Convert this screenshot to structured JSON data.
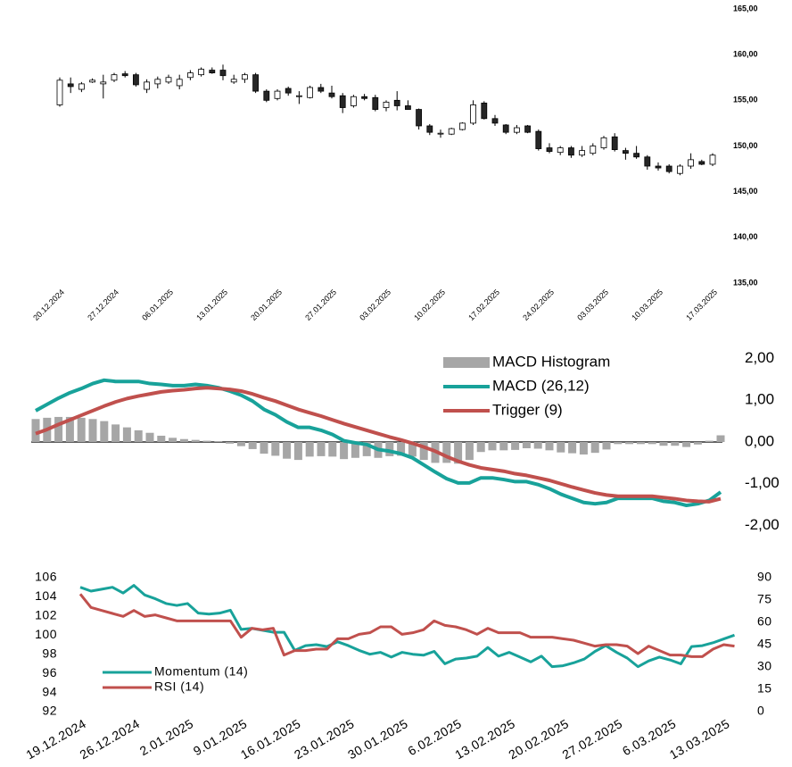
{
  "chart_data": [
    {
      "type": "candlestick",
      "categories": [
        "20.12.2024",
        null,
        null,
        null,
        null,
        "27.12.2024",
        null,
        null,
        null,
        null,
        "06.01.2025",
        null,
        null,
        null,
        null,
        "13.01.2025",
        null,
        null,
        null,
        null,
        "20.01.2025",
        null,
        null,
        null,
        null,
        "27.01.2025",
        null,
        null,
        null,
        null,
        "03.02.2025",
        null,
        null,
        null,
        null,
        "10.02.2025",
        null,
        null,
        null,
        null,
        "17.02.2025",
        null,
        null,
        null,
        null,
        "24.02.2025",
        null,
        null,
        null,
        null,
        "03.03.2025",
        null,
        null,
        null,
        null,
        "10.03.2025",
        null,
        null,
        null,
        null,
        "17.03.2025"
      ],
      "open": [
        154.5,
        156.8,
        156.2,
        157.0,
        156.8,
        157.2,
        157.9,
        157.8,
        156.2,
        156.8,
        157.0,
        156.6,
        157.5,
        157.8,
        158.3,
        158.3,
        157.0,
        157.3,
        157.8,
        156.0,
        155.2,
        156.3,
        155.4,
        155.3,
        156.4,
        155.8,
        155.5,
        154.4,
        155.4,
        155.3,
        154.2,
        155.0,
        154.4,
        154.0,
        152.2,
        151.4,
        151.3,
        151.8,
        152.5,
        154.7,
        153.0,
        152.3,
        151.5,
        152.2,
        151.6,
        149.8,
        149.3,
        149.8,
        149.0,
        149.2,
        149.8,
        151.0,
        149.5,
        149.2,
        148.8,
        147.8,
        147.8,
        147.0,
        147.8,
        148.3,
        148.0
      ],
      "high": [
        157.5,
        157.5,
        157.0,
        157.4,
        157.8,
        158.0,
        158.2,
        158.0,
        157.3,
        157.6,
        157.8,
        157.8,
        158.3,
        158.6,
        158.6,
        158.9,
        157.8,
        158.0,
        158.0,
        156.2,
        156.2,
        156.5,
        156.0,
        156.6,
        156.8,
        156.6,
        155.8,
        155.6,
        155.7,
        155.6,
        155.0,
        156.0,
        155.0,
        154.1,
        152.4,
        151.8,
        152.0,
        152.6,
        155.0,
        154.9,
        153.4,
        152.4,
        152.3,
        152.3,
        151.8,
        150.3,
        150.0,
        150.0,
        150.0,
        150.3,
        151.1,
        151.4,
        149.8,
        150.0,
        149.0,
        148.2,
        148.0,
        148.0,
        149.2,
        148.5,
        149.2
      ],
      "low": [
        154.3,
        155.8,
        155.9,
        156.9,
        155.2,
        157.0,
        157.5,
        156.5,
        155.8,
        156.3,
        156.8,
        156.2,
        157.2,
        157.6,
        157.9,
        157.2,
        156.8,
        156.9,
        155.8,
        154.8,
        155.0,
        155.5,
        154.6,
        155.2,
        155.8,
        155.2,
        153.6,
        154.2,
        155.0,
        153.8,
        153.8,
        153.9,
        154.0,
        151.8,
        151.2,
        150.9,
        151.2,
        151.7,
        152.3,
        152.9,
        152.2,
        151.3,
        151.3,
        151.4,
        149.5,
        149.2,
        149.0,
        148.7,
        148.8,
        149.0,
        149.6,
        149.4,
        148.5,
        148.6,
        147.4,
        147.3,
        147.0,
        146.8,
        147.5,
        147.9,
        147.8
      ],
      "close": [
        157.2,
        156.5,
        156.8,
        157.2,
        157.0,
        157.8,
        157.7,
        156.7,
        157.0,
        157.3,
        157.5,
        157.3,
        158.0,
        158.4,
        158.0,
        157.7,
        157.3,
        157.8,
        156.0,
        155.0,
        156.0,
        155.8,
        155.5,
        156.4,
        156.0,
        155.4,
        154.2,
        155.4,
        155.2,
        154.0,
        154.8,
        154.4,
        154.0,
        152.2,
        151.5,
        151.4,
        151.9,
        152.5,
        154.5,
        153.0,
        152.5,
        151.5,
        152.0,
        151.5,
        149.7,
        149.4,
        149.8,
        149.0,
        149.5,
        150.0,
        150.9,
        149.6,
        149.2,
        148.8,
        147.8,
        147.6,
        147.2,
        147.8,
        148.5,
        148.0,
        149.0
      ],
      "up_color": "#ffffff",
      "down_color": "#262626",
      "edge_color": "#000000",
      "ylim": [
        135,
        165
      ],
      "yticks": [
        {
          "value": 135,
          "label": "135,00"
        },
        {
          "value": 140,
          "label": "140,00"
        },
        {
          "value": 145,
          "label": "145,00"
        },
        {
          "value": 150,
          "label": "150,00"
        },
        {
          "value": 155,
          "label": "155,00"
        },
        {
          "value": 160,
          "label": "160,00"
        },
        {
          "value": 165,
          "label": "165,00"
        }
      ]
    },
    {
      "type": "combo",
      "series": [
        {
          "name": "MACD Histogram",
          "type": "bar",
          "color": "#a6a6a6",
          "values": [
            0.55,
            0.58,
            0.6,
            0.6,
            0.58,
            0.55,
            0.5,
            0.42,
            0.35,
            0.28,
            0.22,
            0.15,
            0.1,
            0.07,
            0.05,
            0.03,
            0.01,
            -0.04,
            -0.1,
            -0.17,
            -0.28,
            -0.33,
            -0.4,
            -0.43,
            -0.35,
            -0.34,
            -0.35,
            -0.41,
            -0.38,
            -0.34,
            -0.38,
            -0.34,
            -0.33,
            -0.35,
            -0.43,
            -0.5,
            -0.5,
            -0.52,
            -0.43,
            -0.24,
            -0.2,
            -0.2,
            -0.19,
            -0.15,
            -0.16,
            -0.2,
            -0.25,
            -0.27,
            -0.3,
            -0.26,
            -0.18,
            -0.05,
            -0.05,
            -0.05,
            -0.05,
            -0.09,
            -0.09,
            -0.12,
            -0.06,
            0.03,
            0.16
          ]
        },
        {
          "name": "MACD (26,12)",
          "type": "line",
          "color": "#18a29a",
          "values": [
            0.75,
            0.9,
            1.05,
            1.18,
            1.28,
            1.4,
            1.48,
            1.45,
            1.45,
            1.45,
            1.4,
            1.38,
            1.35,
            1.35,
            1.38,
            1.35,
            1.3,
            1.22,
            1.12,
            0.98,
            0.78,
            0.65,
            0.48,
            0.35,
            0.35,
            0.28,
            0.18,
            0.03,
            -0.02,
            -0.06,
            -0.18,
            -0.22,
            -0.28,
            -0.38,
            -0.55,
            -0.72,
            -0.88,
            -0.98,
            -0.98,
            -0.86,
            -0.86,
            -0.9,
            -0.95,
            -0.95,
            -1.02,
            -1.12,
            -1.25,
            -1.35,
            -1.45,
            -1.48,
            -1.45,
            -1.35,
            -1.35,
            -1.35,
            -1.35,
            -1.42,
            -1.45,
            -1.52,
            -1.48,
            -1.4,
            -1.2
          ]
        },
        {
          "name": "Trigger (9)",
          "type": "line",
          "color": "#c0504d",
          "values": [
            0.2,
            0.3,
            0.42,
            0.53,
            0.64,
            0.75,
            0.86,
            0.96,
            1.04,
            1.1,
            1.15,
            1.2,
            1.23,
            1.25,
            1.28,
            1.3,
            1.28,
            1.26,
            1.22,
            1.15,
            1.06,
            0.98,
            0.88,
            0.78,
            0.7,
            0.62,
            0.53,
            0.44,
            0.36,
            0.28,
            0.2,
            0.12,
            0.05,
            -0.03,
            -0.12,
            -0.22,
            -0.35,
            -0.46,
            -0.55,
            -0.62,
            -0.66,
            -0.7,
            -0.76,
            -0.8,
            -0.86,
            -0.92,
            -1.0,
            -1.08,
            -1.15,
            -1.22,
            -1.27,
            -1.3,
            -1.3,
            -1.3,
            -1.3,
            -1.33,
            -1.36,
            -1.4,
            -1.42,
            -1.43,
            -1.36
          ]
        }
      ],
      "ylim": [
        -2,
        2
      ],
      "yticks": [
        {
          "value": -2,
          "label": "-2,00"
        },
        {
          "value": -1,
          "label": "-1,00"
        },
        {
          "value": 0,
          "label": "0,00"
        },
        {
          "value": 1,
          "label": "1,00"
        },
        {
          "value": 2,
          "label": "2,00"
        }
      ],
      "legend": "upper right"
    },
    {
      "type": "line",
      "categories": [
        "19.12.2024",
        null,
        null,
        null,
        null,
        "26.12.2024",
        null,
        null,
        null,
        null,
        "2.01.2025",
        null,
        null,
        null,
        null,
        "9.01.2025",
        null,
        null,
        null,
        null,
        "16.01.2025",
        null,
        null,
        null,
        null,
        "23.01.2025",
        null,
        null,
        null,
        null,
        "30.01.2025",
        null,
        null,
        null,
        null,
        "6.02.2025",
        null,
        null,
        null,
        null,
        "13.02.2025",
        null,
        null,
        null,
        null,
        "20.02.2025",
        null,
        null,
        null,
        null,
        "27.02.2025",
        null,
        null,
        null,
        null,
        "6.03.2025",
        null,
        null,
        null,
        null,
        "13.03.2025",
        null
      ],
      "series": [
        {
          "name": "Momentum (14)",
          "color": "#18a29a",
          "axis": "y",
          "values": [
            105.0,
            104.6,
            104.8,
            105.0,
            104.4,
            105.2,
            104.2,
            103.8,
            103.3,
            103.1,
            103.3,
            102.3,
            102.2,
            102.3,
            102.6,
            100.6,
            100.7,
            100.5,
            100.3,
            100.3,
            98.4,
            98.9,
            99.0,
            98.8,
            99.3,
            98.9,
            98.4,
            98.0,
            98.2,
            97.7,
            98.2,
            98.0,
            97.9,
            98.3,
            97.0,
            97.5,
            97.6,
            97.8,
            98.7,
            97.8,
            98.2,
            97.7,
            97.2,
            97.8,
            96.7,
            96.8,
            97.1,
            97.5,
            98.3,
            98.9,
            98.2,
            97.6,
            96.7,
            97.3,
            97.7,
            97.4,
            97.0,
            98.8,
            98.9,
            99.2,
            99.6,
            100.0
          ]
        },
        {
          "name": "RSI (14)",
          "color": "#c0504d",
          "axis": "y2",
          "values": [
            79,
            70,
            68,
            66,
            64,
            68,
            64,
            65,
            63,
            61,
            61,
            61,
            61,
            61,
            61,
            50,
            56,
            55,
            56,
            38,
            41,
            41,
            42,
            42,
            49,
            49,
            52,
            53,
            57,
            57,
            52,
            53,
            55,
            61,
            58,
            57,
            55,
            52,
            56,
            53,
            53,
            53,
            50,
            50,
            50,
            49,
            48,
            46,
            44,
            45,
            45,
            44,
            39,
            44,
            41,
            38,
            38,
            37,
            37,
            42,
            45,
            44
          ]
        }
      ],
      "ylim": [
        92,
        106
      ],
      "yticks": [
        92,
        94,
        96,
        98,
        100,
        102,
        104,
        106
      ],
      "y2lim": [
        0,
        90
      ],
      "y2ticks": [
        0,
        15,
        30,
        45,
        60,
        75,
        90
      ],
      "legend": "lower left"
    }
  ]
}
